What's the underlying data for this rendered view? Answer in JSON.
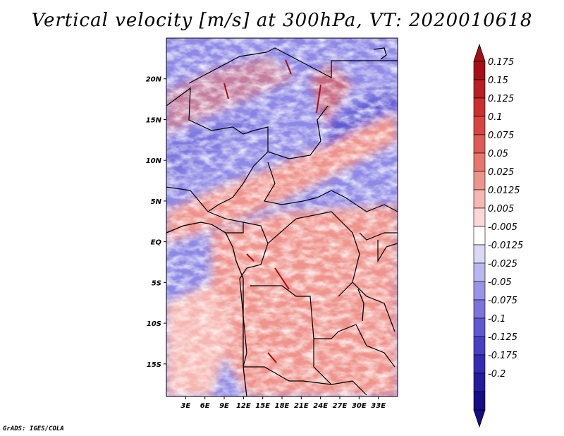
{
  "title": "Vertical velocity [m/s] at 300hPa, VT: 2020010618",
  "credit": "GrADS: IGES/COLA",
  "map": {
    "lon_labels": [
      "3E",
      "6E",
      "9E",
      "12E",
      "15E",
      "18E",
      "21E",
      "24E",
      "27E",
      "30E",
      "33E"
    ],
    "lat_labels": [
      "20N",
      "15N",
      "10N",
      "5N",
      "EQ",
      "5S",
      "10S",
      "15S"
    ],
    "lon_range": [
      0,
      36
    ],
    "lat_range": [
      -19,
      25
    ],
    "lon_values": [
      3,
      6,
      9,
      12,
      15,
      18,
      21,
      24,
      27,
      30,
      33
    ],
    "lat_values": [
      20,
      15,
      10,
      5,
      0,
      -5,
      -10,
      -15
    ]
  },
  "colorbar": {
    "labels": [
      "0.175",
      "0.15",
      "0.125",
      "0.1",
      "0.075",
      "0.05",
      "0.025",
      "0.0125",
      "0.005",
      "-0.005",
      "-0.0125",
      "-0.025",
      "-0.05",
      "-0.075",
      "-0.1",
      "-0.125",
      "-0.175",
      "-0.2"
    ],
    "colors": [
      "#a50f15",
      "#b81e22",
      "#cb2f2f",
      "#d8453f",
      "#e05a55",
      "#e8766f",
      "#ef948d",
      "#f6b7b2",
      "#fbd8d5",
      "#ffffff",
      "#d9d8f7",
      "#b9b6f0",
      "#9994e8",
      "#7b74de",
      "#5f58d2",
      "#4640c4",
      "#332cb2",
      "#231c9e",
      "#140d85"
    ],
    "top_arrow_color": "#a50f15",
    "bottom_arrow_color": "#140d85"
  },
  "colors": {
    "positive": "#e05a55",
    "negative": "#5f58d2"
  }
}
